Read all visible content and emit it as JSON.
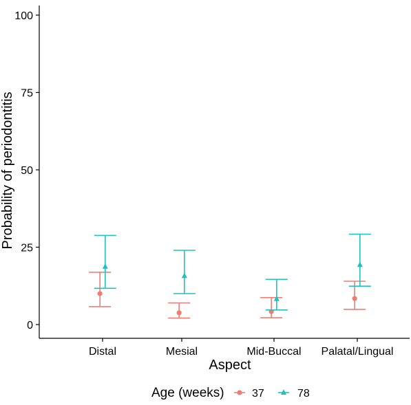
{
  "chart_data": {
    "type": "scatter",
    "xlabel": "Aspect",
    "ylabel": "Probability of periodontitis",
    "categories": [
      "Distal",
      "Mesial",
      "Mid-Buccal",
      "Palatal/Lingual"
    ],
    "ylim": [
      0,
      100
    ],
    "yticks": [
      0,
      25,
      50,
      75,
      100
    ],
    "grid": false,
    "legend": {
      "title": "Age (weeks)",
      "position": "bottom"
    },
    "series": [
      {
        "name": "37",
        "marker": "circle",
        "color": "#F07D74",
        "values": [
          10.0,
          3.8,
          4.2,
          8.4
        ],
        "lower": [
          5.8,
          2.1,
          2.2,
          4.9
        ],
        "upper": [
          16.9,
          7.0,
          8.7,
          14.0
        ]
      },
      {
        "name": "78",
        "marker": "triangle",
        "color": "#22BFC5",
        "values": [
          18.7,
          15.7,
          8.3,
          19.3
        ],
        "lower": [
          11.7,
          10.0,
          4.7,
          12.4
        ],
        "upper": [
          28.8,
          24.0,
          14.6,
          29.2
        ]
      }
    ]
  }
}
